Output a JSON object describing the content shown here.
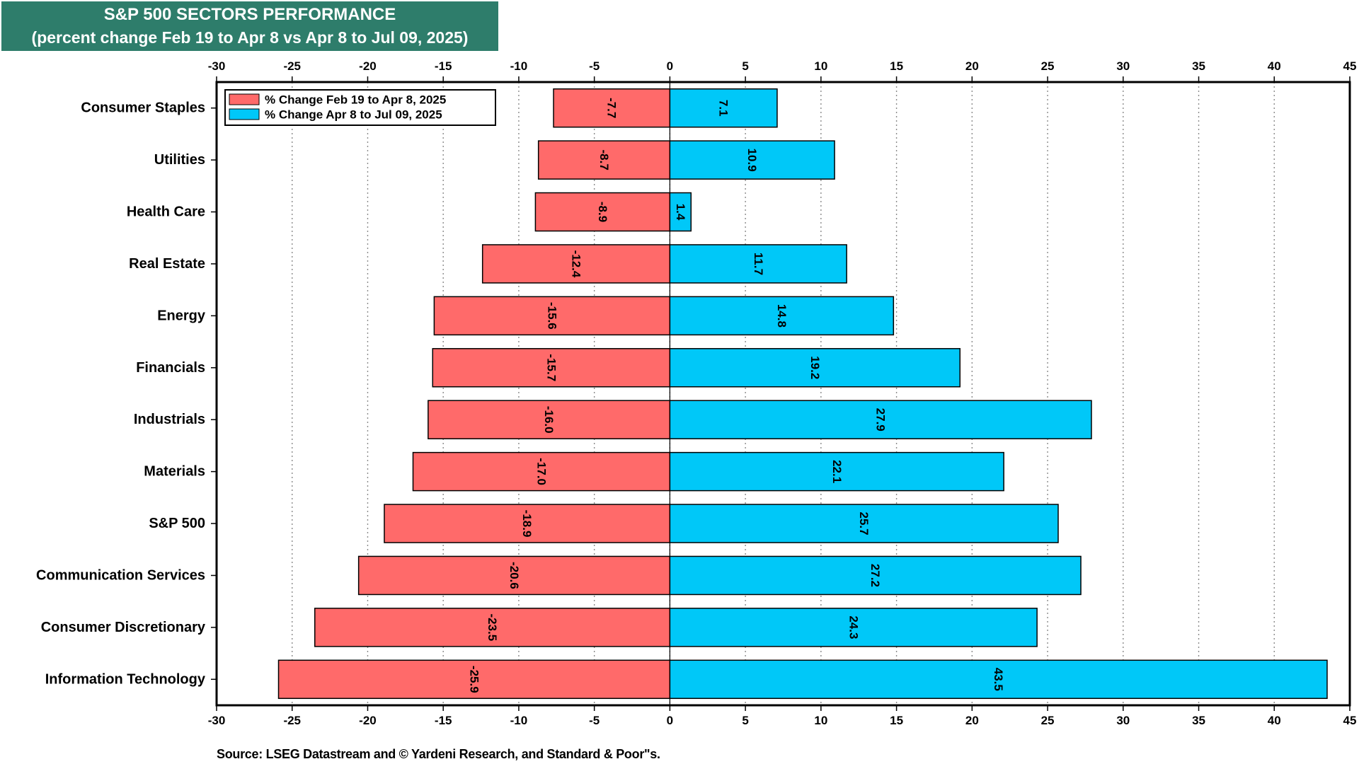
{
  "title": {
    "line1": "S&P 500 SECTORS PERFORMANCE",
    "line2": "(percent change Feb 19 to Apr 8 vs Apr 8 to Jul 09, 2025)"
  },
  "source": "Source: LSEG Datastream and © Yardeni Research, and Standard & Poor\"s.",
  "colors": {
    "series1": "#ff6a6a",
    "series2": "#00c8f8",
    "title_bg": "#2e7d6b"
  },
  "chart_data": {
    "type": "bar",
    "orientation": "horizontal",
    "categories": [
      "Consumer Staples",
      "Utilities",
      "Health Care",
      "Real Estate",
      "Energy",
      "Financials",
      "Industrials",
      "Materials",
      "S&P 500",
      "Communication Services",
      "Consumer Discretionary",
      "Information Technology"
    ],
    "series": [
      {
        "name": "% Change Feb 19 to Apr 8, 2025",
        "values": [
          -7.7,
          -8.7,
          -8.9,
          -12.4,
          -15.6,
          -15.7,
          -16.0,
          -17.0,
          -18.9,
          -20.6,
          -23.5,
          -25.9
        ],
        "labels": [
          "-7.7",
          "-8.7",
          "-8.9",
          "-12.4",
          "-15.6",
          "-15.7",
          "-16.0",
          "-17.0",
          "-18.9",
          "-20.6",
          "-23.5",
          "-25.9"
        ]
      },
      {
        "name": "% Change Apr 8 to Jul 09, 2025",
        "values": [
          7.1,
          10.9,
          1.4,
          11.7,
          14.8,
          19.2,
          27.9,
          22.1,
          25.7,
          27.2,
          24.3,
          43.5
        ],
        "labels": [
          "7.1",
          "10.9",
          "1.4",
          "11.7",
          "14.8",
          "19.2",
          "27.9",
          "22.1",
          "25.7",
          "27.2",
          "24.3",
          "43.5"
        ]
      }
    ],
    "xlim": [
      -30,
      45
    ],
    "xticks": [
      "-30",
      "-25",
      "-20",
      "-15",
      "-10",
      "-5",
      "0",
      "5",
      "10",
      "15",
      "20",
      "25",
      "30",
      "35",
      "40",
      "45"
    ],
    "grid": "vertical dotted",
    "legend": "top-left"
  }
}
